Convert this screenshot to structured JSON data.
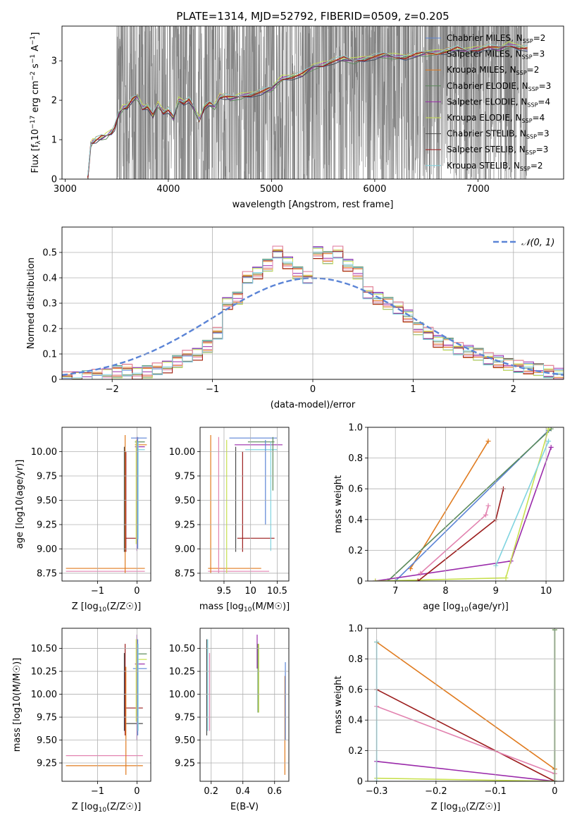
{
  "title": "PLATE=1314, MJD=52792, FIBERID=0509, z=0.205",
  "models": [
    {
      "name": "Chabrier MILES",
      "nssp": "2",
      "color": "#5b84d6"
    },
    {
      "name": "Salpeter MILES",
      "nssp": "3",
      "color": "#e07b1f"
    },
    {
      "name": "Kroupa MILES",
      "nssp": "2",
      "color": "#e07b1f"
    },
    {
      "name": "Chabrier ELODIE",
      "nssp": "3",
      "color": "#5a8a5a"
    },
    {
      "name": "Salpeter ELODIE",
      "nssp": "4",
      "color": "#9a2aaa"
    },
    {
      "name": "Kroupa ELODIE",
      "nssp": "4",
      "color": "#c8e050"
    },
    {
      "name": "Chabrier STELIB",
      "nssp": "3",
      "color": "#4a4a4a"
    },
    {
      "name": "Salpeter STELIB",
      "nssp": "3",
      "color": "#9b1c1c"
    },
    {
      "name": "Kroupa STELIB",
      "nssp": "2",
      "color": "#7fd4e0"
    }
  ],
  "legend_suffix": "N",
  "legend_sub": "SSP",
  "colors": {
    "data": "#808080",
    "normal": "#5b84d6",
    "pink": "#e283b0",
    "grid": "#b0b0b0"
  },
  "chart_data": [
    {
      "id": "spectrum",
      "type": "line",
      "xlabel": "wavelength [Angstrom, rest frame]",
      "ylabel_parts": [
        "Flux [f",
        "λ",
        "10",
        "−17",
        " erg cm",
        "−2",
        " s",
        "−1",
        " A",
        "−1",
        "]"
      ],
      "xlim": [
        2970,
        7830
      ],
      "ylim": [
        0,
        3.88
      ],
      "xticks": [
        3000,
        4000,
        5000,
        6000,
        7000
      ],
      "yticks": [
        0,
        1,
        2,
        3
      ],
      "model_continuum": {
        "x": [
          3220,
          3250,
          3270,
          3300,
          3350,
          3400,
          3450,
          3480,
          3520,
          3560,
          3600,
          3650,
          3700,
          3750,
          3800,
          3850,
          3900,
          3950,
          4000,
          4050,
          4100,
          4150,
          4200,
          4250,
          4300,
          4350,
          4400,
          4450,
          4500,
          4550,
          4600,
          4700,
          4800,
          4900,
          5000,
          5100,
          5200,
          5300,
          5400,
          5500,
          5600,
          5700,
          5800,
          5900,
          6000,
          6100,
          6200,
          6300,
          6400,
          6500,
          6600,
          6700,
          6800,
          6900,
          7000,
          7100,
          7200,
          7300,
          7400,
          7480
        ],
        "y": [
          0,
          0.9,
          0.95,
          1.0,
          1.05,
          1.1,
          1.2,
          1.3,
          1.65,
          1.8,
          1.85,
          2.0,
          2.1,
          1.8,
          1.85,
          1.6,
          1.9,
          1.7,
          1.75,
          1.55,
          2.0,
          1.95,
          2.0,
          1.8,
          1.5,
          1.85,
          1.9,
          1.85,
          2.1,
          2.1,
          2.05,
          2.1,
          2.15,
          2.2,
          2.3,
          2.55,
          2.6,
          2.65,
          2.85,
          2.9,
          3.0,
          3.05,
          3.0,
          3.05,
          3.1,
          3.15,
          3.1,
          3.1,
          3.15,
          3.2,
          3.2,
          3.25,
          3.3,
          3.25,
          3.3,
          3.35,
          3.3,
          3.4,
          3.35,
          3.3
        ]
      },
      "data_noise_range": [
        3500,
        7480
      ]
    },
    {
      "id": "residuals",
      "type": "area",
      "xlabel": "(data-model)/error",
      "ylabel": "Normed distribution",
      "xlim": [
        -2.5,
        2.5
      ],
      "ylim": [
        0,
        0.6
      ],
      "xticks": [
        -2,
        -1,
        0,
        1,
        2
      ],
      "yticks": [
        0,
        0.1,
        0.2,
        0.3,
        0.4,
        0.5
      ],
      "legend": "𝒩(0, 1)",
      "bin_edges": [
        -2.5,
        -2.4,
        -2.3,
        -2.2,
        -2.1,
        -2.0,
        -1.9,
        -1.8,
        -1.7,
        -1.6,
        -1.5,
        -1.4,
        -1.3,
        -1.2,
        -1.1,
        -1.0,
        -0.9,
        -0.8,
        -0.7,
        -0.6,
        -0.5,
        -0.4,
        -0.3,
        -0.2,
        -0.1,
        0.0,
        0.1,
        0.2,
        0.3,
        0.4,
        0.5,
        0.6,
        0.7,
        0.8,
        0.9,
        1.0,
        1.1,
        1.2,
        1.3,
        1.4,
        1.5,
        1.6,
        1.7,
        1.8,
        1.9,
        2.0,
        2.1,
        2.2,
        2.3,
        2.4,
        2.5
      ],
      "hist": [
        0.005,
        0.008,
        0.01,
        0.015,
        0.02,
        0.03,
        0.035,
        0.025,
        0.03,
        0.04,
        0.05,
        0.07,
        0.09,
        0.1,
        0.13,
        0.18,
        0.3,
        0.32,
        0.4,
        0.42,
        0.45,
        0.5,
        0.46,
        0.42,
        0.4,
        0.5,
        0.48,
        0.5,
        0.45,
        0.42,
        0.34,
        0.32,
        0.3,
        0.28,
        0.25,
        0.2,
        0.18,
        0.15,
        0.14,
        0.12,
        0.11,
        0.1,
        0.08,
        0.07,
        0.06,
        0.05,
        0.045,
        0.04,
        0.03,
        0.02
      ]
    },
    {
      "id": "age-vs-Z",
      "type": "scatter",
      "xlabel": "Z [log10(Z/Z☉)]",
      "ylabel": "age  [log10(age/yr)]",
      "xlim": [
        -1.9,
        0.35
      ],
      "ylim": [
        8.67,
        10.25
      ],
      "xticks": [
        -1,
        0
      ],
      "yticks": [
        8.75,
        9.0,
        9.25,
        9.5,
        9.75,
        10.0
      ],
      "hsegs": [
        [
          -1.8,
          0.2,
          8.8,
          "#e07b1f"
        ],
        [
          -1.8,
          0.2,
          8.77,
          "#e283b0"
        ],
        [
          -0.3,
          0.0,
          9.11,
          "#9b1c1c"
        ],
        [
          -0.15,
          0.25,
          10.14,
          "#5b84d6"
        ],
        [
          -0.05,
          0.2,
          10.1,
          "#5a8a5a"
        ],
        [
          -0.05,
          0.25,
          10.07,
          "#e07b1f"
        ],
        [
          -0.05,
          0.2,
          10.05,
          "#9a2aaa"
        ],
        [
          0.0,
          0.2,
          10.02,
          "#7fd4e0"
        ]
      ],
      "vsegs": [
        [
          -0.3,
          8.75,
          10.17,
          "#e07b1f"
        ],
        [
          -0.32,
          8.97,
          10.05,
          "#4a4a4a"
        ],
        [
          -0.28,
          8.97,
          10.0,
          "#9b1c1c"
        ],
        [
          0.0,
          8.98,
          10.15,
          "#9a2aaa"
        ],
        [
          0.02,
          9.0,
          10.15,
          "#5b84d6"
        ],
        [
          -0.02,
          9.05,
          10.12,
          "#c8e050"
        ],
        [
          0.03,
          9.1,
          10.1,
          "#7fd4e0"
        ]
      ]
    },
    {
      "id": "age-vs-mass",
      "type": "scatter",
      "xlabel": "mass [log10(M/M☉)]",
      "ylabel": "",
      "xlim": [
        9.05,
        10.72
      ],
      "ylim": [
        8.67,
        10.25
      ],
      "xticks": [
        9.5,
        10.0,
        10.5
      ],
      "yticks": [
        8.75,
        9.0,
        9.25,
        9.5,
        9.75,
        10.0
      ],
      "hsegs": [
        [
          9.2,
          10.2,
          8.8,
          "#e07b1f"
        ],
        [
          9.2,
          10.35,
          8.77,
          "#e283b0"
        ],
        [
          9.75,
          10.45,
          9.11,
          "#9b1c1c"
        ],
        [
          9.6,
          10.5,
          10.14,
          "#5b84d6"
        ],
        [
          9.95,
          10.45,
          10.1,
          "#5a8a5a"
        ],
        [
          9.7,
          10.6,
          10.07,
          "#9a2aaa"
        ],
        [
          9.9,
          10.5,
          10.02,
          "#7fd4e0"
        ]
      ],
      "vsegs": [
        [
          9.25,
          8.75,
          10.17,
          "#e07b1f"
        ],
        [
          9.4,
          8.75,
          10.15,
          "#e283b0"
        ],
        [
          9.55,
          8.75,
          10.12,
          "#c8e050"
        ],
        [
          9.72,
          8.97,
          10.05,
          "#4a4a4a"
        ],
        [
          9.85,
          8.97,
          10.0,
          "#9b1c1c"
        ],
        [
          10.28,
          9.25,
          10.12,
          "#5b84d6"
        ],
        [
          10.38,
          8.98,
          10.1,
          "#7fd4e0"
        ],
        [
          10.42,
          9.6,
          10.15,
          "#5a8a5a"
        ]
      ]
    },
    {
      "id": "mass-weight-vs-age",
      "type": "line",
      "xlabel": "age  [log10(age/yr)]",
      "ylabel": "mass weight",
      "xlim": [
        6.45,
        10.35
      ],
      "ylim": [
        0,
        1
      ],
      "xticks": [
        7,
        8,
        9,
        10
      ],
      "yticks": [
        0.0,
        0.2,
        0.4,
        0.6,
        0.8,
        1.0
      ],
      "series": [
        {
          "color": "#e07b1f",
          "x": [
            7.3,
            8.85
          ],
          "y": [
            0.08,
            0.91
          ]
        },
        {
          "color": "#5b84d6",
          "x": [
            7.0,
            10.05
          ],
          "y": [
            0.0,
            0.98
          ]
        },
        {
          "color": "#5a8a5a",
          "x": [
            6.85,
            10.1
          ],
          "y": [
            0.0,
            0.99
          ]
        },
        {
          "color": "#9a2aaa",
          "x": [
            6.6,
            9.3,
            10.1
          ],
          "y": [
            0.0,
            0.13,
            0.87
          ]
        },
        {
          "color": "#c8e050",
          "x": [
            6.6,
            9.2,
            10.05
          ],
          "y": [
            0.0,
            0.02,
            0.99
          ]
        },
        {
          "color": "#7fd4e0",
          "x": [
            9.0,
            10.05
          ],
          "y": [
            0.1,
            0.91
          ]
        },
        {
          "color": "#e283b0",
          "x": [
            7.5,
            8.8,
            8.85
          ],
          "y": [
            0.05,
            0.43,
            0.49
          ]
        },
        {
          "color": "#9b1c1c",
          "x": [
            7.45,
            9.0,
            9.15
          ],
          "y": [
            0.0,
            0.4,
            0.6
          ]
        }
      ]
    },
    {
      "id": "mass-vs-Z",
      "type": "scatter",
      "xlabel": "Z [log10(Z/Z☉)]",
      "ylabel": "mass [log10(M/M☉)]",
      "xlim": [
        -1.9,
        0.35
      ],
      "ylim": [
        9.05,
        10.72
      ],
      "xticks": [
        -1,
        0
      ],
      "yticks": [
        9.25,
        9.5,
        9.75,
        10.0,
        10.25,
        10.5
      ],
      "hsegs": [
        [
          -1.8,
          0.15,
          9.33,
          "#e283b0"
        ],
        [
          -1.8,
          0.15,
          9.22,
          "#e07b1f"
        ],
        [
          -0.3,
          0.15,
          9.85,
          "#9b1c1c"
        ],
        [
          -0.3,
          0.15,
          9.68,
          "#4a4a4a"
        ],
        [
          -0.1,
          0.25,
          10.28,
          "#5b84d6"
        ],
        [
          -0.05,
          0.2,
          10.33,
          "#9a2aaa"
        ],
        [
          0.0,
          0.25,
          10.38,
          "#c8e050"
        ],
        [
          0.0,
          0.25,
          10.44,
          "#5a8a5a"
        ]
      ],
      "vsegs": [
        [
          -0.3,
          9.55,
          10.55,
          "#9b1c1c"
        ],
        [
          -0.32,
          9.6,
          10.45,
          "#4a4a4a"
        ],
        [
          -0.28,
          9.12,
          10.3,
          "#e07b1f"
        ],
        [
          0.0,
          9.5,
          10.65,
          "#9a2aaa"
        ],
        [
          0.02,
          9.55,
          10.6,
          "#5b84d6"
        ],
        [
          -0.02,
          9.7,
          10.6,
          "#c8e050"
        ],
        [
          0.03,
          9.6,
          10.55,
          "#7fd4e0"
        ]
      ]
    },
    {
      "id": "mass-vs-ebv",
      "type": "scatter",
      "xlabel": "E(B-V)",
      "ylabel": "",
      "xlim": [
        0.13,
        0.69
      ],
      "ylim": [
        9.05,
        10.72
      ],
      "xticks": [
        0.2,
        0.4,
        0.6
      ],
      "yticks": [
        9.25,
        9.5,
        9.75,
        10.0,
        10.25,
        10.5
      ],
      "hsegs": [],
      "vsegs": [
        [
          0.172,
          9.55,
          10.6,
          "#4a4a4a"
        ],
        [
          0.178,
          9.6,
          10.6,
          "#7fd4e0"
        ],
        [
          0.19,
          9.6,
          10.45,
          "#e283b0"
        ],
        [
          0.49,
          10.28,
          10.65,
          "#9a2aaa"
        ],
        [
          0.495,
          9.8,
          10.55,
          "#5a8a5a"
        ],
        [
          0.5,
          9.8,
          10.55,
          "#c8e050"
        ],
        [
          0.665,
          9.12,
          10.2,
          "#e07b1f"
        ],
        [
          0.668,
          9.5,
          10.35,
          "#5b84d6"
        ]
      ]
    },
    {
      "id": "mass-weight-vs-Z",
      "type": "line",
      "xlabel": "Z [log10(Z/Z☉)]",
      "ylabel": "mass weight",
      "xlim": [
        -0.315,
        0.015
      ],
      "ylim": [
        0,
        1
      ],
      "xticks": [
        -0.3,
        -0.2,
        -0.1,
        0.0
      ],
      "yticks": [
        0.0,
        0.2,
        0.4,
        0.6,
        0.8,
        1.0
      ],
      "series": [
        {
          "color": "#e07b1f",
          "x": [
            -0.3,
            0.0
          ],
          "y": [
            0.91,
            0.08
          ]
        },
        {
          "color": "#9b1c1c",
          "x": [
            -0.3,
            0.0
          ],
          "y": [
            0.6,
            0.0
          ]
        },
        {
          "color": "#e283b0",
          "x": [
            -0.3,
            0.0
          ],
          "y": [
            0.49,
            0.05
          ]
        },
        {
          "color": "#9a2aaa",
          "x": [
            -0.3,
            0.0
          ],
          "y": [
            0.13,
            0.0
          ]
        },
        {
          "color": "#c8e050",
          "x": [
            -0.3,
            0.0
          ],
          "y": [
            0.02,
            0.0
          ]
        },
        {
          "color": "#7fd4e0",
          "x": [
            -0.3,
            -0.3
          ],
          "y": [
            0.0,
            0.91
          ]
        },
        {
          "color": "#c8e050",
          "x": [
            0.0,
            0.0
          ],
          "y": [
            0.0,
            0.99
          ]
        },
        {
          "color": "#5a8a5a",
          "x": [
            0.0,
            0.0
          ],
          "y": [
            0.0,
            0.99
          ]
        }
      ]
    }
  ]
}
